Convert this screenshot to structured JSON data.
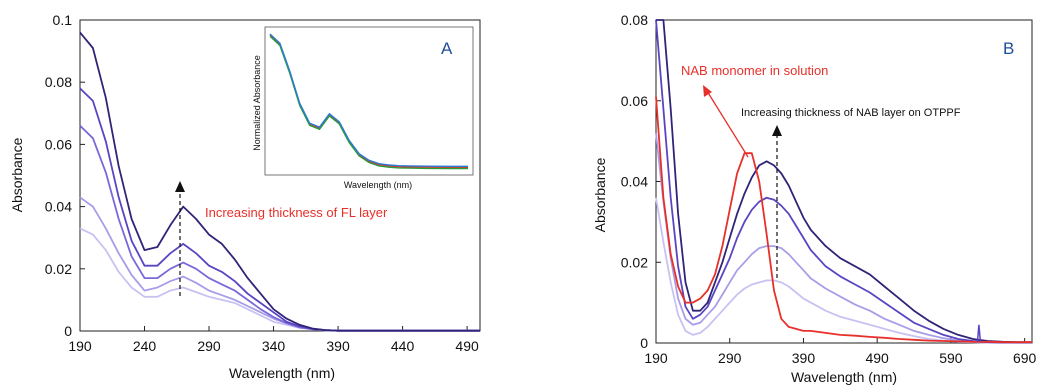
{
  "chart_data": [
    {
      "type": "line",
      "panel_label": "A",
      "xlabel": "Wavelength (nm)",
      "ylabel": "Absorbance",
      "xlim": [
        190,
        500
      ],
      "ylim": [
        0,
        0.1
      ],
      "x_ticks": [
        "190",
        "240",
        "290",
        "340",
        "390",
        "440",
        "490"
      ],
      "y_ticks": [
        "0",
        "0.02",
        "0.04",
        "0.06",
        "0.08",
        "0.1"
      ],
      "annotation": "Increasing thickness of FL layer",
      "colors": [
        "#c7c2f2",
        "#a79de8",
        "#7a68d8",
        "#5a44c2",
        "#2f2577"
      ],
      "x": [
        190,
        200,
        210,
        220,
        230,
        240,
        250,
        260,
        270,
        280,
        290,
        300,
        310,
        320,
        330,
        340,
        350,
        360,
        370,
        380,
        390,
        400,
        440,
        490,
        500
      ],
      "series": [
        {
          "values": [
            0.033,
            0.031,
            0.026,
            0.019,
            0.014,
            0.011,
            0.011,
            0.013,
            0.014,
            0.0125,
            0.011,
            0.01,
            0.009,
            0.007,
            0.005,
            0.003,
            0.002,
            0.001,
            0.0005,
            0.0002,
            0.0001,
            0.0001,
            0.0001,
            0.0001,
            0.0001
          ]
        },
        {
          "values": [
            0.043,
            0.04,
            0.033,
            0.025,
            0.018,
            0.013,
            0.014,
            0.016,
            0.0175,
            0.0155,
            0.013,
            0.0115,
            0.01,
            0.008,
            0.006,
            0.004,
            0.0025,
            0.0012,
            0.0006,
            0.0003,
            0.0001,
            0.0001,
            0.0001,
            0.0001,
            0.0001
          ]
        },
        {
          "values": [
            0.066,
            0.062,
            0.051,
            0.036,
            0.024,
            0.017,
            0.017,
            0.02,
            0.022,
            0.02,
            0.017,
            0.015,
            0.013,
            0.01,
            0.007,
            0.0045,
            0.0025,
            0.0012,
            0.0006,
            0.0003,
            0.0001,
            0.0001,
            0.0001,
            0.0001,
            0.0001
          ]
        },
        {
          "values": [
            0.078,
            0.074,
            0.061,
            0.043,
            0.029,
            0.021,
            0.021,
            0.025,
            0.028,
            0.025,
            0.021,
            0.019,
            0.016,
            0.012,
            0.009,
            0.006,
            0.003,
            0.0015,
            0.0007,
            0.0003,
            0.0001,
            0.0001,
            0.0001,
            0.0001,
            0.0001
          ]
        },
        {
          "values": [
            0.096,
            0.091,
            0.075,
            0.053,
            0.036,
            0.026,
            0.027,
            0.034,
            0.04,
            0.036,
            0.031,
            0.028,
            0.023,
            0.017,
            0.012,
            0.007,
            0.004,
            0.002,
            0.0008,
            0.0003,
            0.0001,
            0.0001,
            0.0001,
            0.0001,
            0.0001
          ]
        }
      ],
      "inset": {
        "xlabel": "Wavelength (nm)",
        "ylabel": "Normalized Absorbance",
        "colors": [
          "#e8302a",
          "#2a9c3a",
          "#2a7ad6"
        ],
        "x": [
          0,
          0.05,
          0.1,
          0.15,
          0.2,
          0.25,
          0.3,
          0.35,
          0.4,
          0.45,
          0.5,
          0.55,
          0.6,
          0.65,
          0.7,
          0.8,
          0.9,
          1.0
        ],
        "values": [
          1.0,
          0.93,
          0.72,
          0.48,
          0.33,
          0.3,
          0.4,
          0.34,
          0.2,
          0.1,
          0.05,
          0.025,
          0.015,
          0.01,
          0.008,
          0.006,
          0.005,
          0.005
        ]
      }
    },
    {
      "type": "line",
      "panel_label": "B",
      "xlabel": "Wavelength (nm)",
      "ylabel": "Absorbance",
      "xlim": [
        190,
        700
      ],
      "ylim": [
        0,
        0.08
      ],
      "x_ticks": [
        "190",
        "290",
        "390",
        "490",
        "590",
        "690"
      ],
      "y_ticks": [
        "0",
        "0.02",
        "0.04",
        "0.06",
        "0.08"
      ],
      "annotations": [
        "NAB monomer in solution",
        "Increasing thickness of NAB layer on OTPPF"
      ],
      "colors": [
        "#c7c2f2",
        "#a79de8",
        "#5a44c2",
        "#2f2577",
        "#e8302a"
      ],
      "x": [
        190,
        200,
        210,
        220,
        230,
        240,
        250,
        260,
        270,
        280,
        290,
        300,
        310,
        320,
        330,
        340,
        350,
        360,
        370,
        380,
        390,
        400,
        420,
        440,
        460,
        480,
        500,
        520,
        540,
        560,
        580,
        600,
        620,
        640,
        660,
        680,
        700
      ],
      "series": [
        {
          "values": [
            0.036,
            0.025,
            0.015,
            0.007,
            0.003,
            0.002,
            0.0025,
            0.004,
            0.006,
            0.008,
            0.01,
            0.012,
            0.0135,
            0.0145,
            0.015,
            0.0155,
            0.0155,
            0.015,
            0.014,
            0.0125,
            0.011,
            0.01,
            0.008,
            0.0065,
            0.0055,
            0.0045,
            0.0035,
            0.0025,
            0.0017,
            0.001,
            0.0006,
            0.0003,
            0.0002,
            0.0001,
            0.0001,
            0.0001,
            0.0001
          ]
        },
        {
          "values": [
            0.052,
            0.035,
            0.021,
            0.011,
            0.006,
            0.0045,
            0.005,
            0.007,
            0.009,
            0.012,
            0.015,
            0.018,
            0.02,
            0.022,
            0.0235,
            0.024,
            0.024,
            0.0235,
            0.022,
            0.02,
            0.018,
            0.016,
            0.0135,
            0.0115,
            0.0095,
            0.008,
            0.006,
            0.0045,
            0.003,
            0.002,
            0.0012,
            0.0006,
            0.0003,
            0.0002,
            0.0001,
            0.0001,
            0.0001
          ]
        },
        {
          "values": [
            0.08,
            0.058,
            0.036,
            0.019,
            0.009,
            0.006,
            0.007,
            0.009,
            0.013,
            0.017,
            0.021,
            0.026,
            0.03,
            0.033,
            0.035,
            0.036,
            0.0355,
            0.034,
            0.032,
            0.029,
            0.026,
            0.023,
            0.019,
            0.0165,
            0.0145,
            0.0125,
            0.01,
            0.0075,
            0.005,
            0.0035,
            0.002,
            0.001,
            0.0005,
            0.0002,
            0.0001,
            0.0001,
            0.0001
          ]
        },
        {
          "values": [
            0.08,
            0.08,
            0.058,
            0.032,
            0.015,
            0.008,
            0.008,
            0.01,
            0.015,
            0.02,
            0.026,
            0.032,
            0.037,
            0.041,
            0.044,
            0.045,
            0.044,
            0.042,
            0.039,
            0.035,
            0.031,
            0.028,
            0.024,
            0.021,
            0.019,
            0.017,
            0.014,
            0.011,
            0.008,
            0.0055,
            0.0035,
            0.002,
            0.001,
            0.0005,
            0.0003,
            0.0002,
            0.0002
          ]
        },
        {
          "values": [
            0.061,
            0.036,
            0.022,
            0.014,
            0.01,
            0.01,
            0.011,
            0.013,
            0.017,
            0.024,
            0.033,
            0.042,
            0.047,
            0.047,
            0.04,
            0.027,
            0.013,
            0.006,
            0.004,
            0.0035,
            0.003,
            0.003,
            0.0025,
            0.002,
            0.0018,
            0.0015,
            0.0013,
            0.001,
            0.0008,
            0.0006,
            0.0005,
            0.0004,
            0.0003,
            0.0003,
            0.0002,
            0.0002,
            0.0002
          ]
        }
      ]
    }
  ]
}
